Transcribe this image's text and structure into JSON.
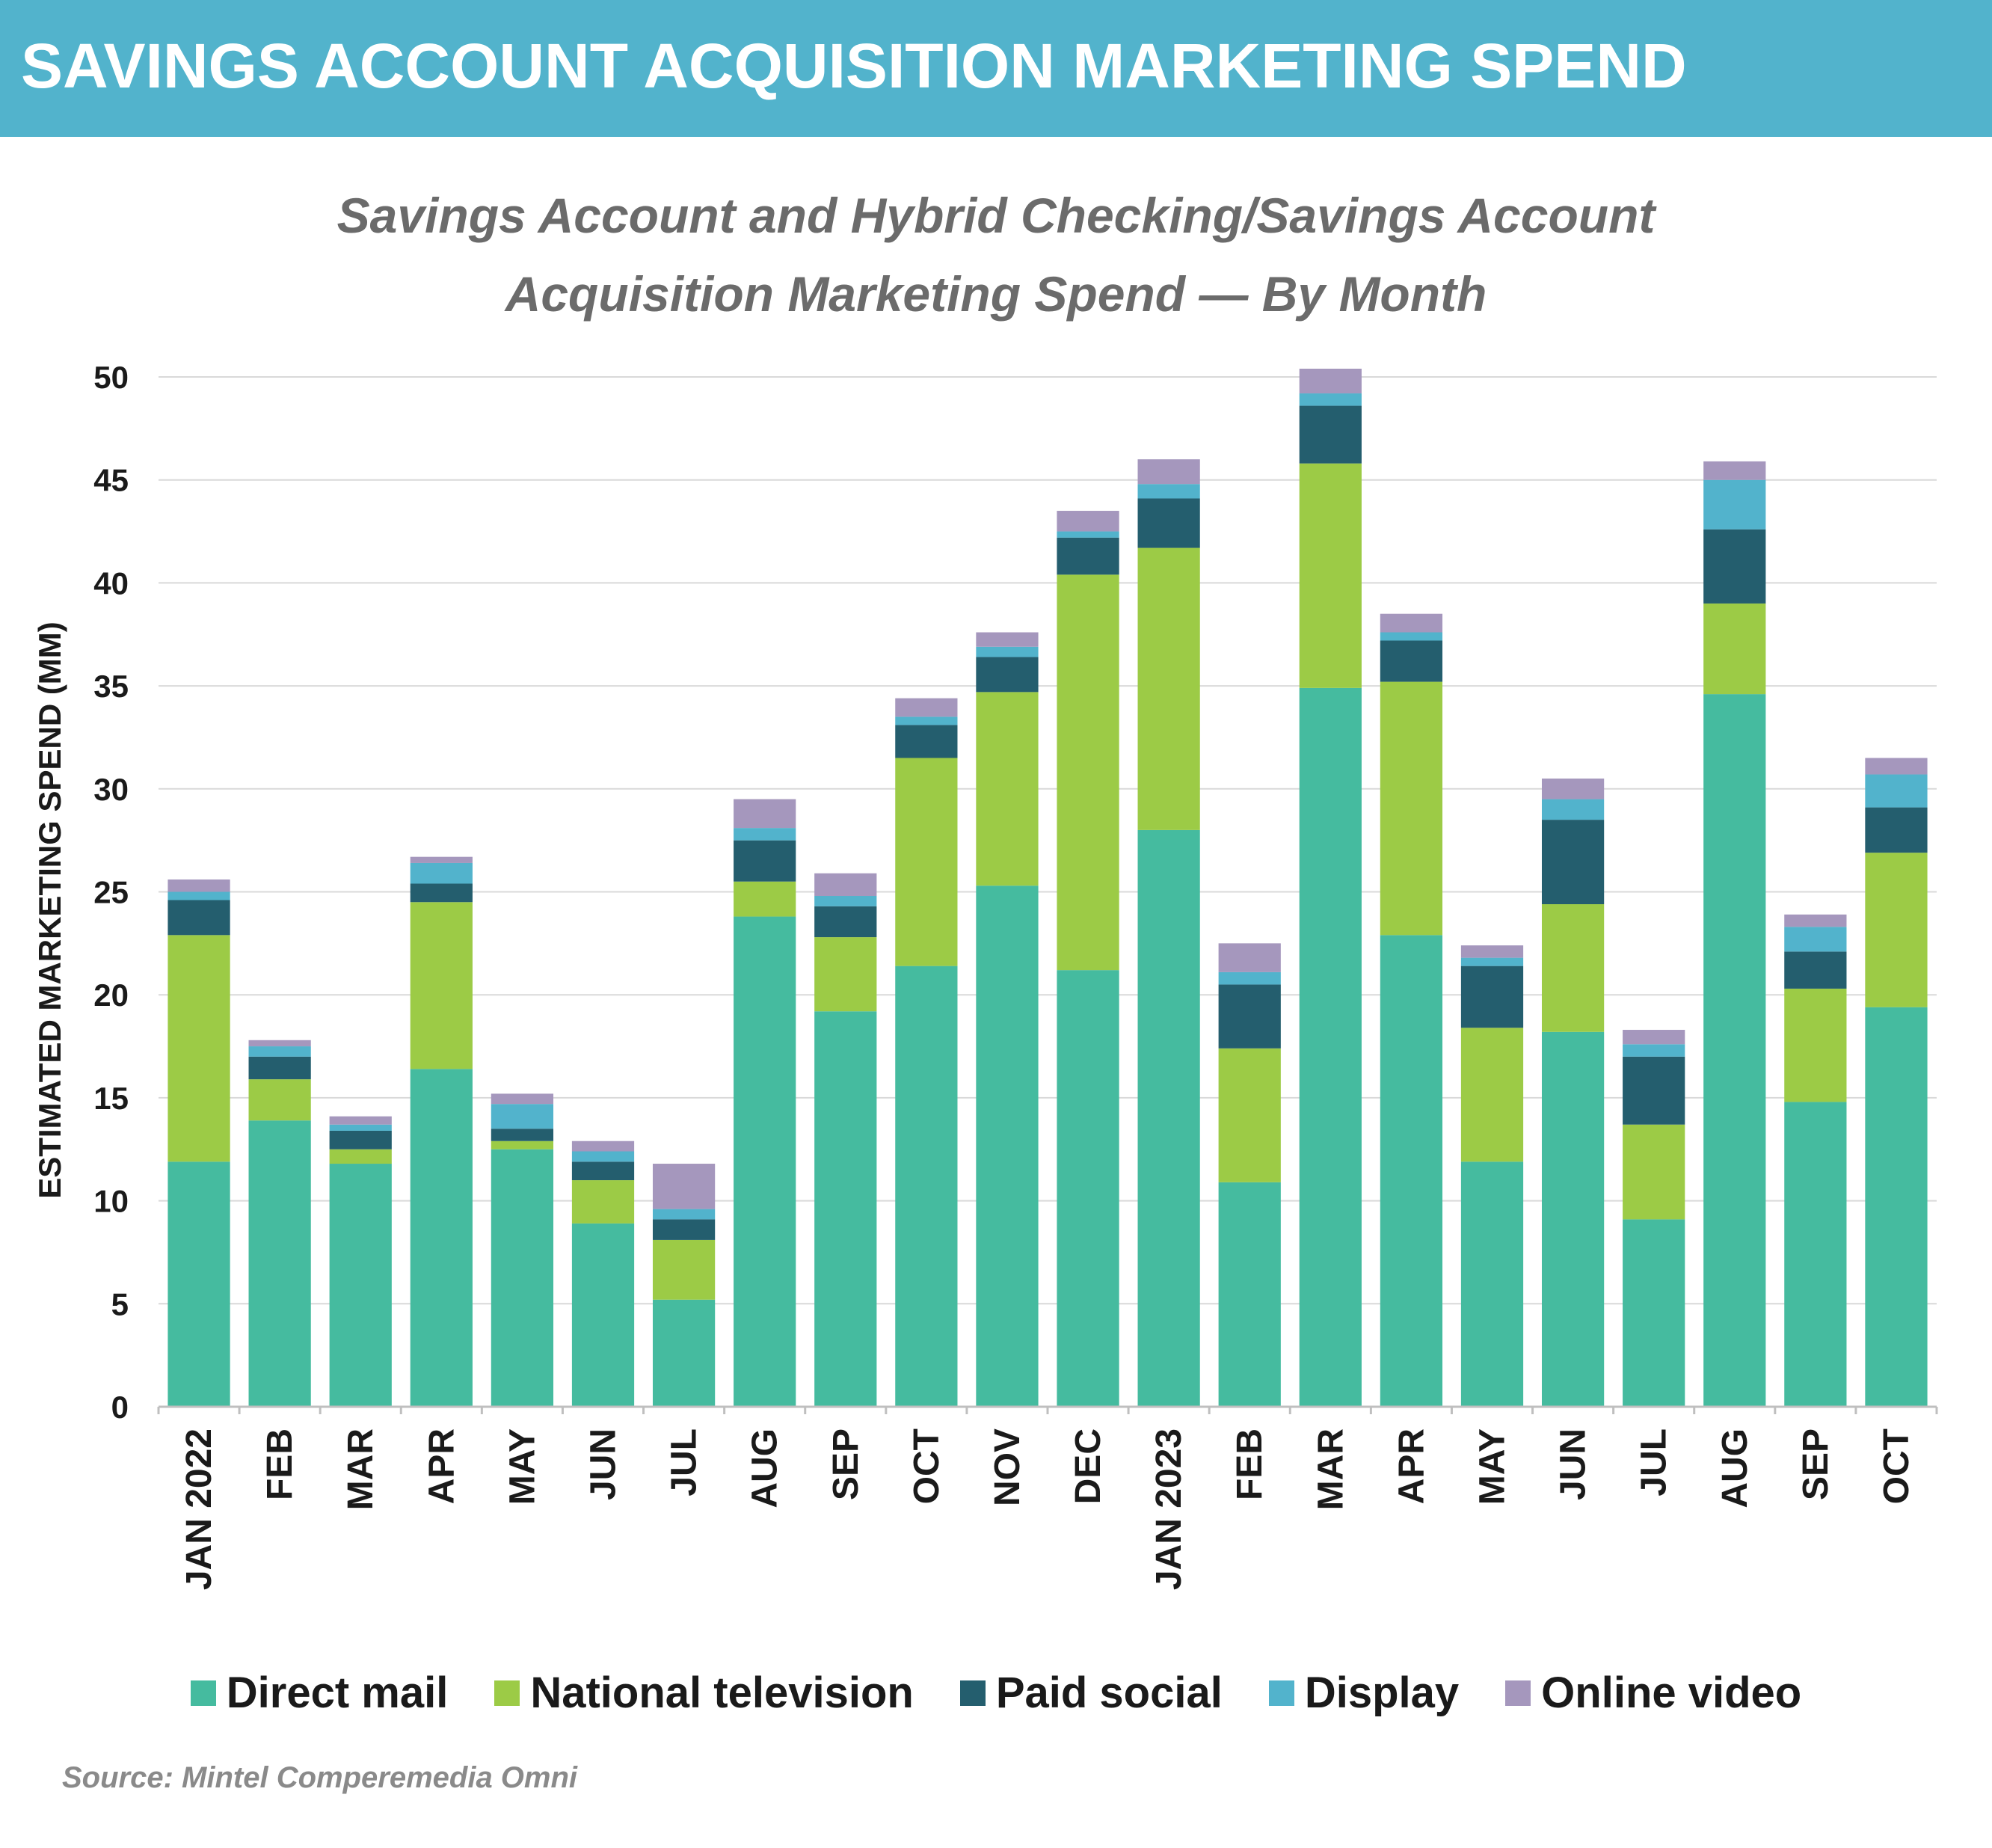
{
  "header": {
    "title": "SAVINGS ACCOUNT ACQUISITION MARKETING SPEND"
  },
  "source": "Source: Mintel Comperemedia Omni",
  "chart_data": {
    "type": "bar",
    "stacked": true,
    "title_line1": "Savings Account and Hybrid Checking/Savings Account",
    "title_line2": "Acquisition Marketing Spend — By Month",
    "xlabel": "",
    "ylabel": "ESTIMATED MARKETING SPEND (MM)",
    "ylim": [
      0,
      50
    ],
    "yticks": [
      0,
      5,
      10,
      15,
      20,
      25,
      30,
      35,
      40,
      45,
      50
    ],
    "grid": true,
    "legend_position": "bottom",
    "categories": [
      "JAN 2022",
      "FEB",
      "MAR",
      "APR",
      "MAY",
      "JUN",
      "JUL",
      "AUG",
      "SEP",
      "OCT",
      "NOV",
      "DEC",
      "JAN 2023",
      "FEB",
      "MAR",
      "APR",
      "MAY",
      "JUN",
      "JUL",
      "AUG",
      "SEP",
      "OCT"
    ],
    "series": [
      {
        "name": "Direct mail",
        "color": "#45bb9f",
        "values": [
          11.9,
          13.9,
          11.8,
          16.4,
          12.5,
          8.9,
          5.2,
          23.8,
          19.2,
          21.4,
          25.3,
          21.2,
          28.0,
          10.9,
          34.9,
          22.9,
          11.9,
          18.2,
          9.1,
          34.6,
          14.8,
          19.4
        ]
      },
      {
        "name": "National television",
        "color": "#9ccb46",
        "values": [
          11.0,
          2.0,
          0.7,
          8.1,
          0.4,
          2.1,
          2.9,
          1.7,
          3.6,
          10.1,
          9.4,
          19.2,
          13.7,
          6.5,
          10.9,
          12.3,
          6.5,
          6.2,
          4.6,
          4.4,
          5.5,
          7.5
        ]
      },
      {
        "name": "Paid social",
        "color": "#245e6e",
        "values": [
          1.7,
          1.1,
          0.9,
          0.9,
          0.6,
          0.9,
          1.0,
          2.0,
          1.5,
          1.6,
          1.7,
          1.8,
          2.4,
          3.1,
          2.8,
          2.0,
          3.0,
          4.1,
          3.3,
          3.6,
          1.8,
          2.2
        ]
      },
      {
        "name": "Display",
        "color": "#52b3cc",
        "values": [
          0.4,
          0.5,
          0.3,
          1.0,
          1.2,
          0.5,
          0.5,
          0.6,
          0.5,
          0.4,
          0.5,
          0.3,
          0.7,
          0.6,
          0.6,
          0.4,
          0.4,
          1.0,
          0.6,
          2.4,
          1.2,
          1.6
        ]
      },
      {
        "name": "Online video",
        "color": "#a597bd",
        "values": [
          0.6,
          0.3,
          0.4,
          0.3,
          0.5,
          0.5,
          2.2,
          1.4,
          1.1,
          0.9,
          0.7,
          1.0,
          1.2,
          1.4,
          1.2,
          0.9,
          0.6,
          1.0,
          0.7,
          0.9,
          0.6,
          0.8
        ]
      }
    ]
  }
}
